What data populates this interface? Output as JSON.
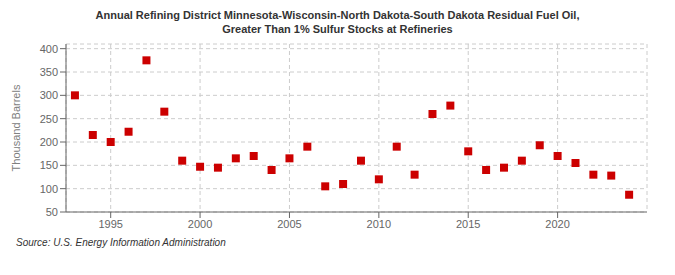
{
  "chart_data": {
    "type": "scatter",
    "title": "Annual Refining District Minnesota-Wisconsin-North Dakota-South Dakota Residual Fuel Oil,\nGreater Than 1% Sulfur Stocks at Refineries",
    "ylabel": "Thousand Barrels",
    "annotations": [
      "Source: U.S. Energy Information Administration"
    ],
    "x": [
      1993,
      1994,
      1995,
      1996,
      1997,
      1998,
      1999,
      2000,
      2001,
      2002,
      2003,
      2004,
      2005,
      2006,
      2007,
      2008,
      2009,
      2010,
      2011,
      2012,
      2013,
      2014,
      2015,
      2016,
      2017,
      2018,
      2019,
      2020,
      2021,
      2022,
      2023,
      2024
    ],
    "values": [
      300,
      215,
      200,
      222,
      375,
      265,
      160,
      147,
      145,
      165,
      170,
      140,
      165,
      190,
      105,
      110,
      160,
      120,
      190,
      130,
      260,
      278,
      180,
      140,
      145,
      160,
      193,
      170,
      155,
      130,
      128,
      87
    ],
    "color": "#cc0000",
    "marker": "square",
    "grid": true,
    "xlim": [
      1992.5,
      2025
    ],
    "ylim": [
      50,
      410
    ],
    "xticks": [
      1995,
      2000,
      2005,
      2010,
      2015,
      2020
    ],
    "yticks": [
      50,
      100,
      150,
      200,
      250,
      300,
      350,
      400
    ]
  }
}
